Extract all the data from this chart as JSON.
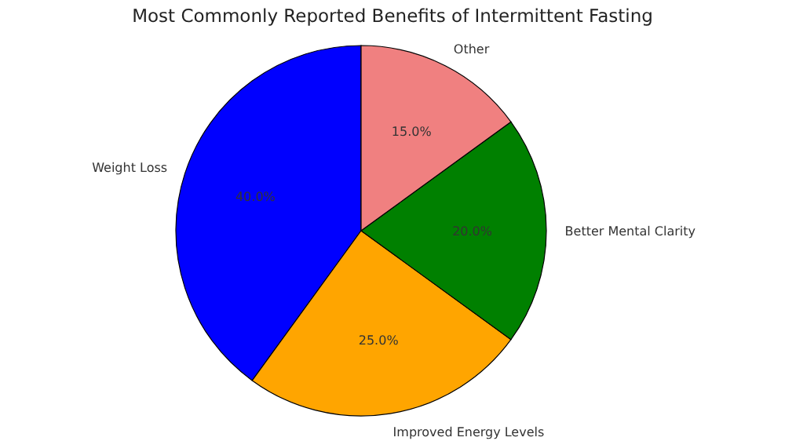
{
  "chart_data": {
    "type": "pie",
    "title": "Most Commonly Reported Benefits of Intermittent Fasting",
    "categories": [
      "Weight Loss",
      "Improved Energy Levels",
      "Better Mental Clarity",
      "Other"
    ],
    "values": [
      40,
      25,
      20,
      15
    ],
    "colors": [
      "#0000ff",
      "#ffa500",
      "#008000",
      "#f08080"
    ],
    "value_labels": [
      "40.0%",
      "25.0%",
      "20.0%",
      "15.0%"
    ]
  }
}
